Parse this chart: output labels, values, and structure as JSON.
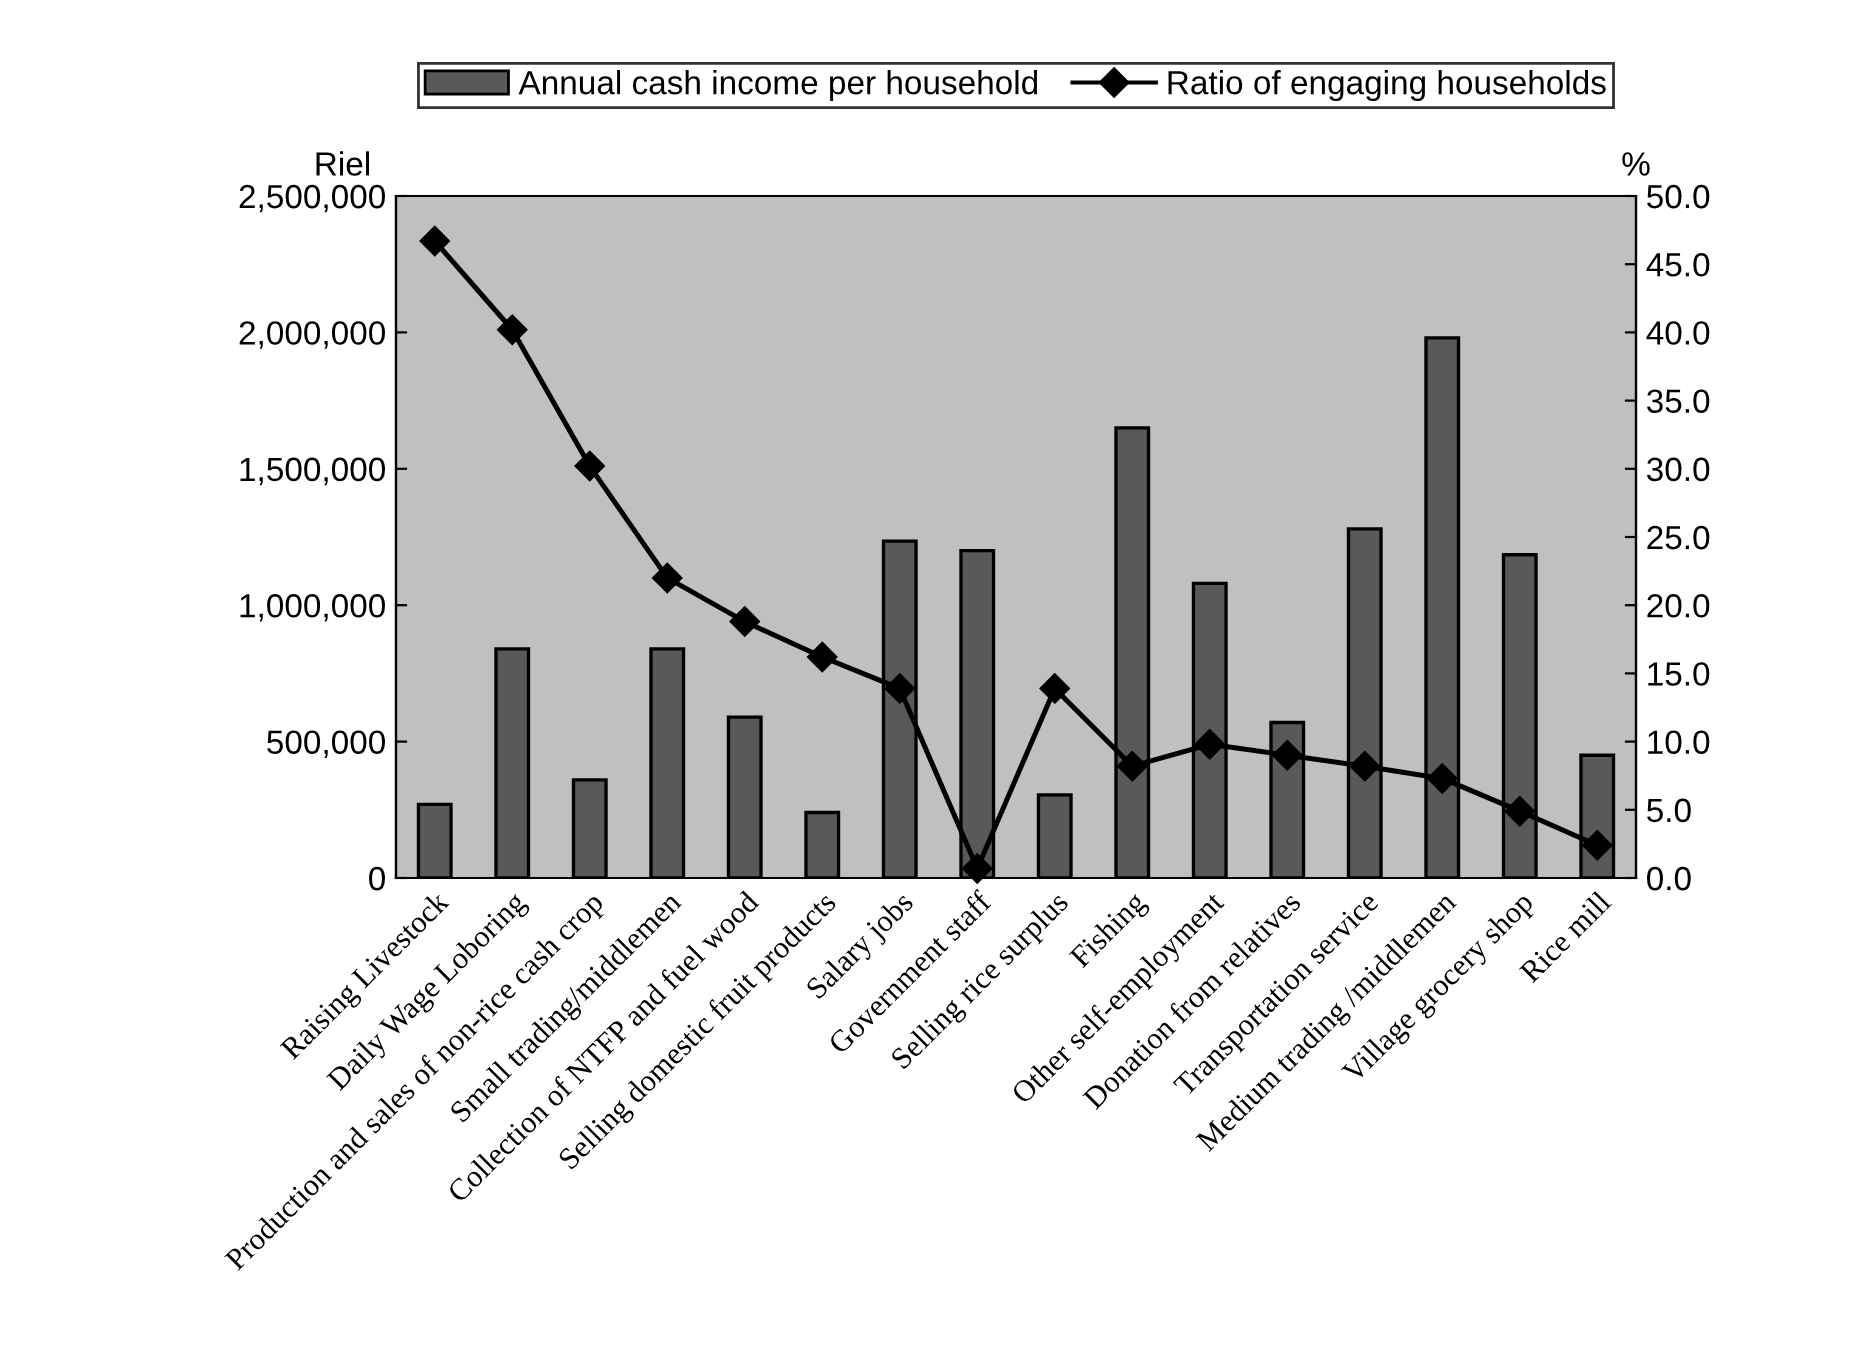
{
  "chart_data": {
    "type": "bar",
    "categories": [
      "Raising Livestock",
      "Daily Wage Loboring",
      "Production and sales of non-rice cash crop",
      "Small trading/middlemen",
      "Collection of NTFP and fuel wood",
      "Selling domestic fruit products",
      "Salary jobs",
      "Government staff",
      "Selling rice surplus",
      "Fishing",
      "Other self-employment",
      "Donation from relatives",
      "Transportation service",
      "Medium trading /middlemen",
      "Village grocery shop",
      "Rice mill"
    ],
    "series": [
      {
        "name": "Annual cash income per household",
        "color": "#595959",
        "values": [
          270000,
          840000,
          360000,
          840000,
          590000,
          240000,
          1235000,
          1200000,
          305000,
          1650000,
          1080000,
          570000,
          1280000,
          1980000,
          1185000,
          450000
        ]
      },
      {
        "name": "Ratio of engaging households",
        "type": "line",
        "axis": "y2",
        "color": "#000000",
        "marker": "diamond",
        "values": [
          46.7,
          40.2,
          30.2,
          22.0,
          18.8,
          16.2,
          13.9,
          0.7,
          13.9,
          8.2,
          9.8,
          9.0,
          8.2,
          7.3,
          4.9,
          2.4
        ]
      }
    ],
    "ylabel": "Riel",
    "y2label": "%",
    "ylim": [
      0,
      2500000
    ],
    "yticks": [
      {
        "value": 0,
        "label": "0"
      },
      {
        "value": 500000,
        "label": "500,000"
      },
      {
        "value": 1000000,
        "label": "1,000,000"
      },
      {
        "value": 1500000,
        "label": "1,500,000"
      },
      {
        "value": 2000000,
        "label": "2,000,000"
      },
      {
        "value": 2500000,
        "label": "2,500,000"
      }
    ],
    "y2lim": [
      0,
      50
    ],
    "y2ticks": [
      {
        "value": 0,
        "label": "0.0"
      },
      {
        "value": 5,
        "label": "5.0"
      },
      {
        "value": 10,
        "label": "10.0"
      },
      {
        "value": 15,
        "label": "15.0"
      },
      {
        "value": 20,
        "label": "20.0"
      },
      {
        "value": 25,
        "label": "25.0"
      },
      {
        "value": 30,
        "label": "30.0"
      },
      {
        "value": 35,
        "label": "35.0"
      },
      {
        "value": 40,
        "label": "40.0"
      },
      {
        "value": 45,
        "label": "45.0"
      },
      {
        "value": 50,
        "label": "50.0"
      }
    ],
    "grid": false,
    "legend": "top"
  }
}
